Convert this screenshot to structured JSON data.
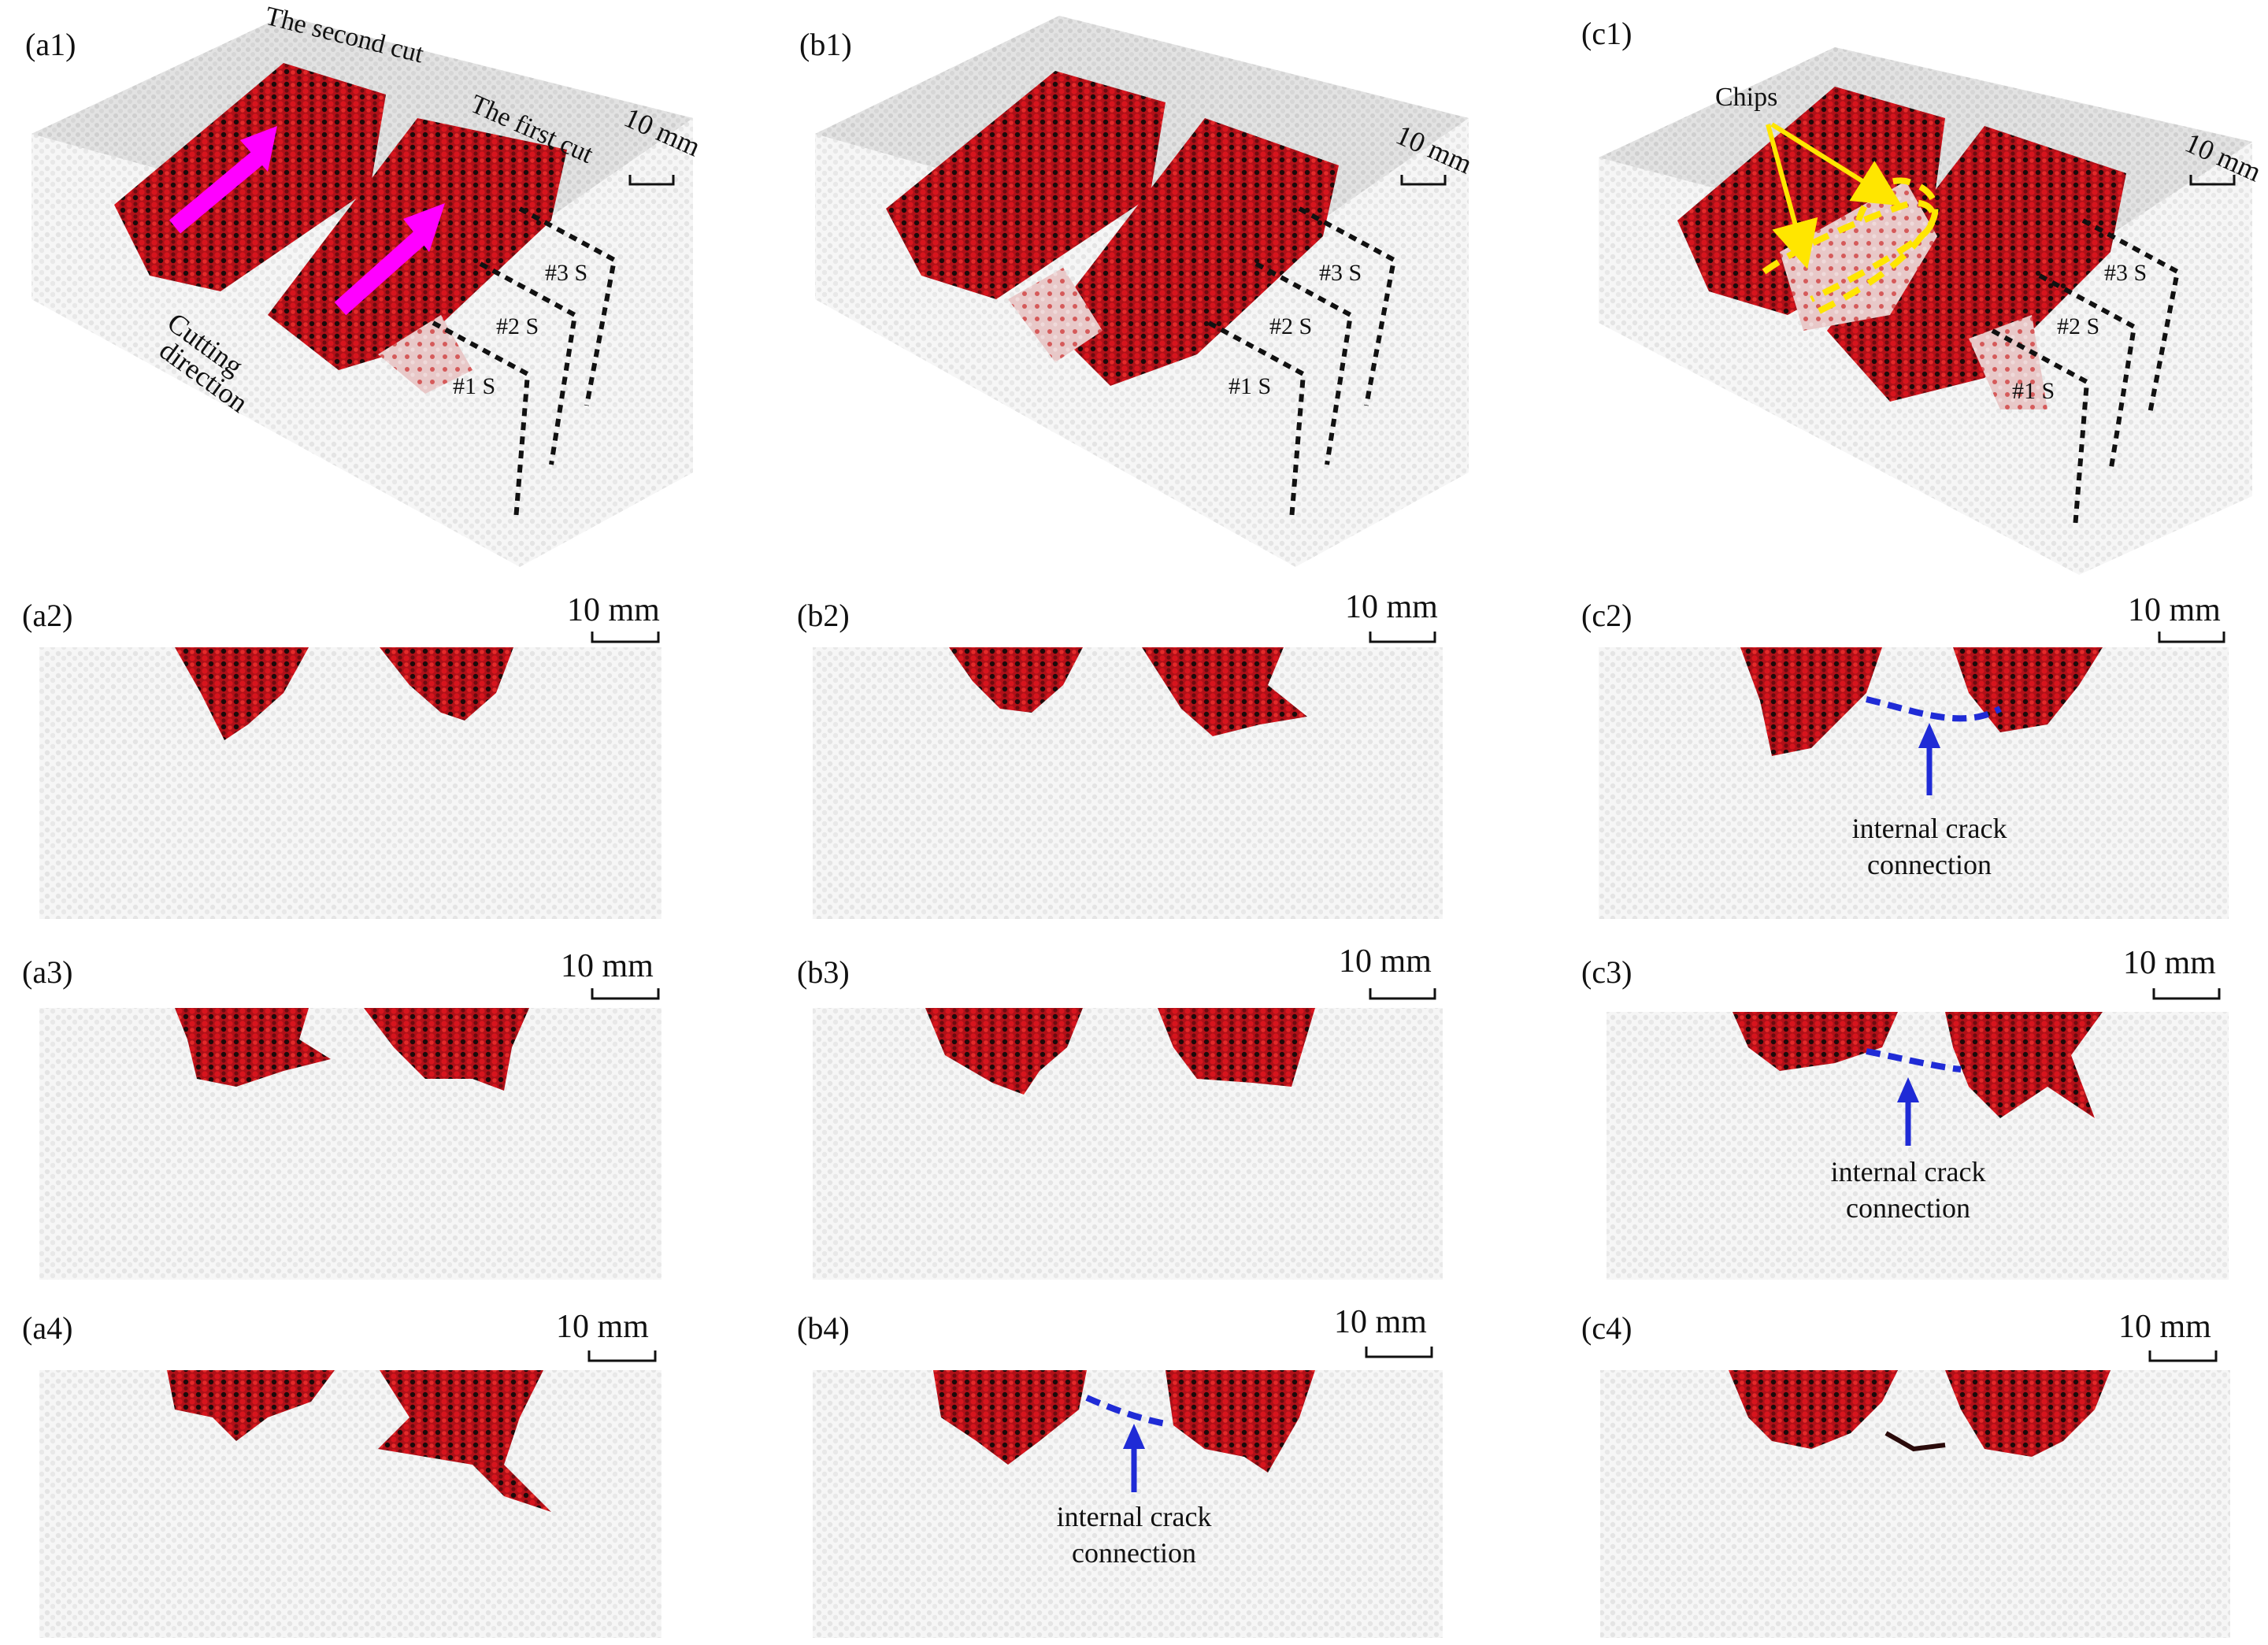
{
  "panels": {
    "a1": "(a1)",
    "b1": "(b1)",
    "c1": "(c1)",
    "a2": "(a2)",
    "b2": "(b2)",
    "c2": "(c2)",
    "a3": "(a3)",
    "b3": "(b3)",
    "c3": "(c3)",
    "a4": "(a4)",
    "b4": "(b4)",
    "c4": "(c4)"
  },
  "scale_bar": "10 mm",
  "annotations": {
    "second_cut": "The second cut",
    "first_cut": "The first cut",
    "cutting": "Cutting",
    "direction": "direction",
    "s1": "#1 S",
    "s2": "#2 S",
    "s3": "#3 S",
    "chips": "Chips",
    "crack_line1": "internal crack",
    "crack_line2": "connection"
  },
  "colors": {
    "damage_red": "#c8141c",
    "damage_dark": "#1a0a0a",
    "rock_grey": "#d9d9d9",
    "arrow_magenta": "#ff00ff",
    "chip_yellow": "#ffe600",
    "crack_blue": "#1f2bd6"
  }
}
